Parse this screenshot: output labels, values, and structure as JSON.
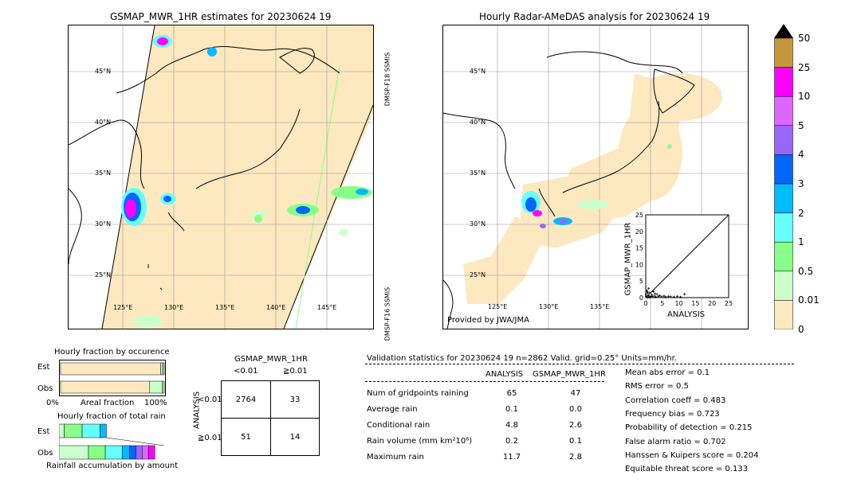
{
  "left_map": {
    "title": "GSMAP_MWR_1HR estimates for 20230624 19",
    "lat_labels": [
      "45°N",
      "40°N",
      "35°N",
      "30°N",
      "25°N"
    ],
    "lon_labels": [
      "125°E",
      "130°E",
      "135°E",
      "140°E",
      "145°E"
    ],
    "sensor_top": "DMSP-F18 SSMIS",
    "sensor_bottom": "DMSP-F16 SSMIS"
  },
  "right_map": {
    "title": "Hourly Radar-AMeDAS analysis for 20230624 19",
    "lat_labels": [
      "45°N",
      "40°N",
      "35°N",
      "30°N",
      "25°N"
    ],
    "lon_labels": [
      "125°E",
      "130°E",
      "135°E"
    ],
    "provided_by": "Provided by JWA/JMA"
  },
  "colorbar": {
    "labels": [
      "50",
      "25",
      "10",
      "5",
      "4",
      "3",
      "2",
      "1",
      "0.5",
      "0.01",
      "0"
    ],
    "colors": [
      "#c8963c",
      "#ff00ff",
      "#dd66ff",
      "#9966ff",
      "#0066ff",
      "#00bbff",
      "#66ffff",
      "#88ff88",
      "#ccffcc",
      "#fde8c0"
    ]
  },
  "chart_data": [
    {
      "type": "scatter",
      "xlabel": "ANALYSIS",
      "ylabel": "GSMAP_MWR_1HR",
      "xlim": [
        0,
        25
      ],
      "ylim": [
        0,
        25
      ],
      "xticks": [
        "0",
        "5",
        "10",
        "15",
        "20",
        "25"
      ],
      "yticks": [
        "0",
        "5",
        "10",
        "15",
        "20",
        "25"
      ],
      "points": [
        [
          0.2,
          0.3
        ],
        [
          0.5,
          0.1
        ],
        [
          0.8,
          0.6
        ],
        [
          1.0,
          0.2
        ],
        [
          1.2,
          1.5
        ],
        [
          1.5,
          0.4
        ],
        [
          1.8,
          0.9
        ],
        [
          2.0,
          0.3
        ],
        [
          2.3,
          1.8
        ],
        [
          2.6,
          0.5
        ],
        [
          3.0,
          0.2
        ],
        [
          3.4,
          1.0
        ],
        [
          3.8,
          0.4
        ],
        [
          4.2,
          0.6
        ],
        [
          4.8,
          0.3
        ],
        [
          5.5,
          0.5
        ],
        [
          6.0,
          0.2
        ],
        [
          6.8,
          0.4
        ],
        [
          7.5,
          0.3
        ],
        [
          8.5,
          0.2
        ],
        [
          9.5,
          0.4
        ],
        [
          10.5,
          0.2
        ],
        [
          11.7,
          1.0
        ],
        [
          0.3,
          2.2
        ],
        [
          0.6,
          1.4
        ],
        [
          0.9,
          2.8
        ],
        [
          0.1,
          0.9
        ],
        [
          1.4,
          0.1
        ],
        [
          2.8,
          1.2
        ],
        [
          0.4,
          1.8
        ]
      ]
    },
    {
      "type": "bar",
      "title": "Hourly fraction by occurence",
      "categories": [
        "Est",
        "Obs"
      ],
      "xlabel": "Areal fraction",
      "x_min_label": "0%",
      "x_max_label": "100%",
      "segments": [
        [
          0.965,
          0.02,
          0.015
        ],
        [
          0.86,
          0.12,
          0.02
        ]
      ],
      "segment_colors": [
        "#fde8c0",
        "#ccffcc",
        "#88ff88"
      ]
    },
    {
      "type": "bar",
      "title": "Hourly fraction of total rain",
      "categories": [
        "Est",
        "Obs"
      ],
      "xlabel": "Rainfall accumulation by amount",
      "segments": [
        [
          0.0,
          0.05,
          0.17,
          0.17,
          0.06
        ],
        [
          0.0,
          0.28,
          0.16,
          0.16,
          0.07,
          0.06,
          0.06,
          0.06,
          0.06
        ]
      ],
      "segment_colors": [
        "#fde8c0",
        "#ccffcc",
        "#88ff88",
        "#66ffff",
        "#00bbff",
        "#0066ff",
        "#9966ff",
        "#dd66ff",
        "#ff00ff"
      ]
    }
  ],
  "contingency": {
    "title": "GSMAP_MWR_1HR",
    "col_labels": [
      "<0.01",
      "≧0.01"
    ],
    "row_labels": [
      "<0.01",
      "≧0.01"
    ],
    "side_label": "ANALYSIS",
    "cells": [
      [
        "2764",
        "33"
      ],
      [
        "51",
        "14"
      ]
    ]
  },
  "validation": {
    "header": "Validation statistics for 20230624 19  n=2862 Valid. grid=0.25° Units=mm/hr.",
    "col_analysis": "ANALYSIS",
    "col_gsmap": "GSMAP_MWR_1HR",
    "rows": [
      {
        "label": "Num of gridpoints raining",
        "analysis": "65",
        "gsmap": "47"
      },
      {
        "label": "Average rain",
        "analysis": "0.1",
        "gsmap": "0.0"
      },
      {
        "label": "Conditional rain",
        "analysis": "4.8",
        "gsmap": "2.6"
      },
      {
        "label": "Rain volume (mm km²10⁶)",
        "analysis": "0.2",
        "gsmap": "0.1"
      },
      {
        "label": "Maximum rain",
        "analysis": "11.7",
        "gsmap": "2.8"
      }
    ],
    "scores": [
      "Mean abs error =    0.1",
      "RMS error =    0.5",
      "Correlation coeff =  0.483",
      "Frequency bias =  0.723",
      "Probability of detection =  0.215",
      "False alarm ratio =  0.702",
      "Hanssen & Kuipers score =  0.204",
      "Equitable threat score =  0.133"
    ]
  }
}
